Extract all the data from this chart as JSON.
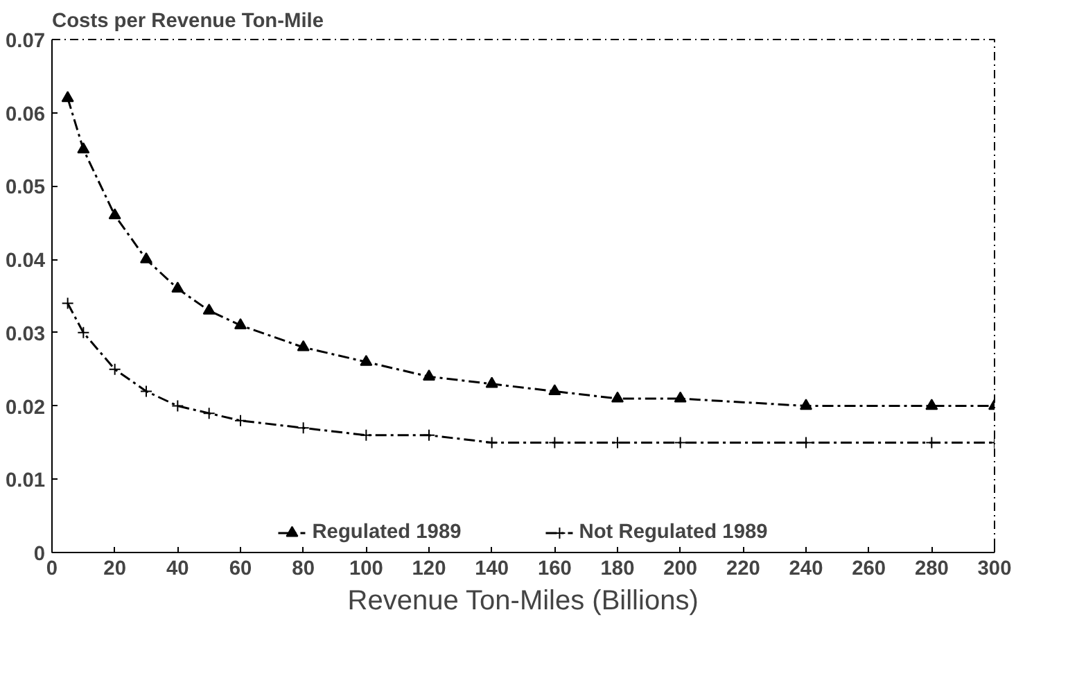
{
  "chart_data": {
    "type": "line",
    "title": "Costs per Revenue Ton-Mile",
    "xlabel": "Revenue Ton-Miles (Billions)",
    "x": [
      5,
      10,
      20,
      30,
      40,
      50,
      60,
      80,
      100,
      120,
      140,
      160,
      180,
      200,
      240,
      280,
      300
    ],
    "series": [
      {
        "name": "Regulated 1989",
        "color": "#000000",
        "marker": "triangle",
        "line_style": "dashed",
        "values": [
          0.062,
          0.055,
          0.046,
          0.04,
          0.036,
          0.033,
          0.031,
          0.028,
          0.026,
          0.024,
          0.023,
          0.022,
          0.021,
          0.021,
          0.02,
          0.02,
          0.02
        ]
      },
      {
        "name": "Not Regulated 1989",
        "color": "#000000",
        "marker": "cross",
        "line_style": "dashed",
        "values": [
          0.034,
          0.03,
          0.025,
          0.022,
          0.02,
          0.019,
          0.018,
          0.017,
          0.016,
          0.016,
          0.015,
          0.015,
          0.015,
          0.015,
          0.015,
          0.015,
          0.015
        ]
      }
    ],
    "xlim": [
      0,
      300
    ],
    "xticks": [
      0,
      20,
      40,
      60,
      80,
      100,
      120,
      140,
      160,
      180,
      200,
      220,
      240,
      260,
      280,
      300
    ],
    "ylim": [
      0,
      0.07
    ],
    "yticks": [
      0,
      0.01,
      0.02,
      0.03,
      0.04,
      0.05,
      0.06,
      0.07
    ],
    "grid": false,
    "legend": "bottom"
  }
}
